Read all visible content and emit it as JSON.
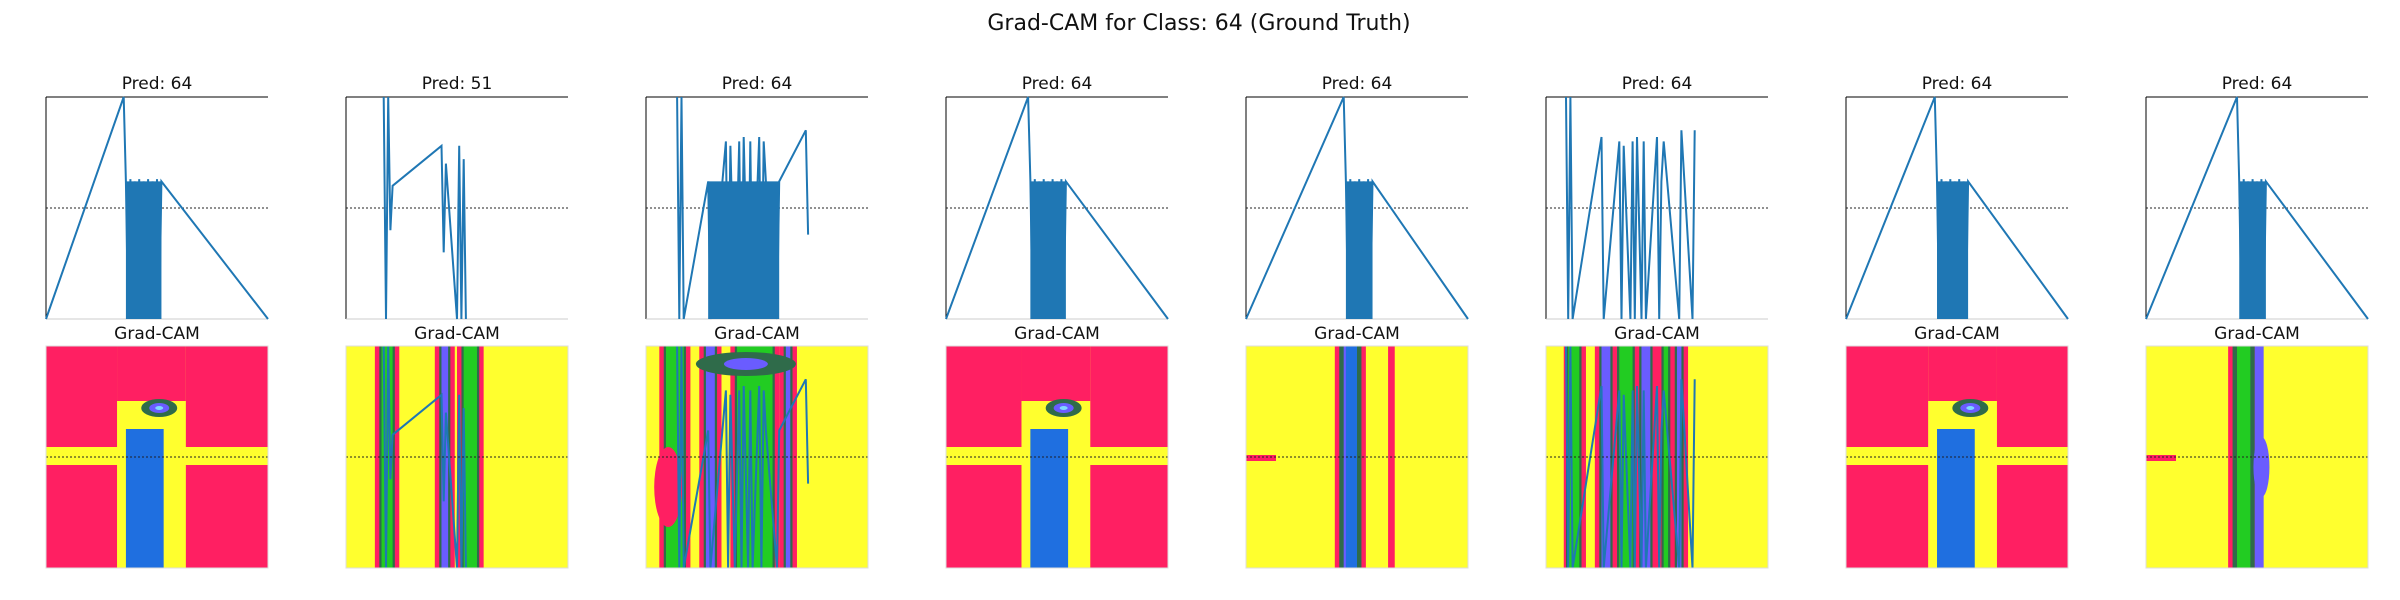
{
  "figure": {
    "title": "Grad-CAM for Class: 64 (Ground Truth)"
  },
  "colors": {
    "signal": "#1f77b4",
    "bar": "#1f6fe0",
    "cam_hot": "#ff1f62",
    "cam_warm": "#ffff2e",
    "cam_mid": "#2f6b4a",
    "cam_green": "#22cc22",
    "cam_cool": "#6a5cff",
    "cam_cold": "#7fd6ff",
    "threshold_line": "#222222",
    "axis": "#000000"
  },
  "chart_data": [
    {
      "type": "line",
      "panel": 1,
      "title": "Pred: 64",
      "x": [
        0,
        35,
        36,
        37,
        38,
        39,
        40,
        41,
        42,
        43,
        44,
        45,
        46,
        47,
        48,
        49,
        50,
        51,
        52,
        100
      ],
      "values": [
        0,
        1.0,
        0.62,
        0.0,
        0.63,
        0.0,
        0.62,
        0.0,
        0.63,
        0.0,
        0.62,
        0.0,
        0.63,
        0.0,
        0.62,
        0.0,
        0.63,
        0.0,
        0.62,
        0
      ],
      "threshold": 0.5,
      "ylim": [
        0,
        1
      ],
      "xlim": [
        0,
        100
      ]
    },
    {
      "type": "line",
      "panel": 2,
      "title": "Pred: 51",
      "x": [
        17,
        18,
        19,
        20,
        21,
        43,
        44,
        45,
        50,
        51,
        52,
        53,
        54
      ],
      "values": [
        1.0,
        0.0,
        1.0,
        0.4,
        0.6,
        0.78,
        0.3,
        0.7,
        0.0,
        0.78,
        0.0,
        0.72,
        0.0
      ],
      "threshold": 0.5,
      "ylim": [
        0,
        1
      ],
      "xlim": [
        0,
        100
      ]
    },
    {
      "type": "line",
      "panel": 3,
      "title": "Pred: 64",
      "x": [
        14,
        15,
        16,
        17,
        28,
        29,
        36,
        37,
        38,
        40,
        42,
        43,
        44,
        46,
        47,
        48,
        51,
        52,
        53,
        54,
        59,
        60,
        72,
        73
      ],
      "values": [
        1.0,
        0.0,
        1.0,
        0.0,
        0.62,
        0.0,
        0.8,
        0.0,
        0.78,
        0.0,
        0.8,
        0.0,
        0.82,
        0.0,
        0.8,
        0.0,
        0.82,
        0.0,
        0.8,
        0.62,
        0.0,
        0.62,
        0.85,
        0.38
      ],
      "threshold": 0.5,
      "ylim": [
        0,
        1
      ],
      "xlim": [
        0,
        100
      ]
    },
    {
      "type": "line",
      "panel": 4,
      "title": "Pred: 64",
      "x": [
        0,
        37,
        38,
        39,
        40,
        41,
        42,
        43,
        44,
        45,
        46,
        47,
        48,
        49,
        50,
        51,
        52,
        53,
        54,
        100
      ],
      "values": [
        0,
        1.0,
        0.62,
        0.0,
        0.63,
        0.0,
        0.62,
        0.0,
        0.63,
        0.0,
        0.62,
        0.0,
        0.63,
        0.0,
        0.62,
        0.0,
        0.63,
        0.0,
        0.62,
        0
      ],
      "threshold": 0.5,
      "ylim": [
        0,
        1
      ],
      "xlim": [
        0,
        100
      ]
    },
    {
      "type": "line",
      "panel": 5,
      "title": "Pred: 64",
      "x": [
        0,
        44,
        45,
        46,
        47,
        48,
        49,
        50,
        51,
        52,
        53,
        54,
        55,
        56,
        57,
        100
      ],
      "values": [
        0,
        1.0,
        0.62,
        0.0,
        0.63,
        0.0,
        0.62,
        0.0,
        0.63,
        0.0,
        0.62,
        0.0,
        0.63,
        0.0,
        0.62,
        0
      ],
      "threshold": 0.5,
      "ylim": [
        0,
        1
      ],
      "xlim": [
        0,
        100
      ]
    },
    {
      "type": "line",
      "panel": 6,
      "title": "Pred: 64",
      "x": [
        9,
        10,
        11,
        12,
        25,
        26,
        33,
        34,
        35,
        38,
        39,
        40,
        41,
        43,
        44,
        45,
        50,
        51,
        52,
        53,
        60,
        61,
        66,
        67
      ],
      "values": [
        1.0,
        0.0,
        1.0,
        0.0,
        0.82,
        0.0,
        0.8,
        0.0,
        0.78,
        0.0,
        0.8,
        0.0,
        0.82,
        0.0,
        0.8,
        0.0,
        0.82,
        0.0,
        0.62,
        0.8,
        0.0,
        0.85,
        0.0,
        0.85
      ],
      "threshold": 0.5,
      "ylim": [
        0,
        1
      ],
      "xlim": [
        0,
        100
      ]
    },
    {
      "type": "line",
      "panel": 7,
      "title": "Pred: 64",
      "x": [
        0,
        40,
        41,
        42,
        43,
        44,
        45,
        46,
        47,
        48,
        49,
        50,
        51,
        52,
        53,
        54,
        55,
        100
      ],
      "values": [
        0,
        1.0,
        0.62,
        0.0,
        0.63,
        0.0,
        0.62,
        0.0,
        0.63,
        0.0,
        0.62,
        0.0,
        0.63,
        0.0,
        0.62,
        0.0,
        0.62,
        0
      ],
      "threshold": 0.5,
      "ylim": [
        0,
        1
      ],
      "xlim": [
        0,
        100
      ]
    },
    {
      "type": "line",
      "panel": 8,
      "title": "Pred: 64",
      "x": [
        0,
        41,
        42,
        43,
        44,
        45,
        46,
        47,
        48,
        49,
        50,
        51,
        52,
        53,
        54,
        100
      ],
      "values": [
        0,
        1.0,
        0.62,
        0.0,
        0.63,
        0.0,
        0.62,
        0.0,
        0.63,
        0.0,
        0.62,
        0.0,
        0.63,
        0.0,
        0.62,
        0
      ],
      "threshold": 0.5,
      "ylim": [
        0,
        1
      ],
      "xlim": [
        0,
        100
      ]
    },
    {
      "type": "heatmap",
      "panel": 1,
      "title": "Grad-CAM",
      "pattern": "pink-cross"
    },
    {
      "type": "heatmap",
      "panel": 2,
      "title": "Grad-CAM",
      "pattern": "yellow-stripes"
    },
    {
      "type": "heatmap",
      "panel": 3,
      "title": "Grad-CAM",
      "pattern": "yellow-mixed"
    },
    {
      "type": "heatmap",
      "panel": 4,
      "title": "Grad-CAM",
      "pattern": "pink-cross"
    },
    {
      "type": "heatmap",
      "panel": 5,
      "title": "Grad-CAM",
      "pattern": "yellow-center"
    },
    {
      "type": "heatmap",
      "panel": 6,
      "title": "Grad-CAM",
      "pattern": "pink-stripes"
    },
    {
      "type": "heatmap",
      "panel": 7,
      "title": "Grad-CAM",
      "pattern": "pink-cross"
    },
    {
      "type": "heatmap",
      "panel": 8,
      "title": "Grad-CAM",
      "pattern": "yellow-center"
    }
  ]
}
